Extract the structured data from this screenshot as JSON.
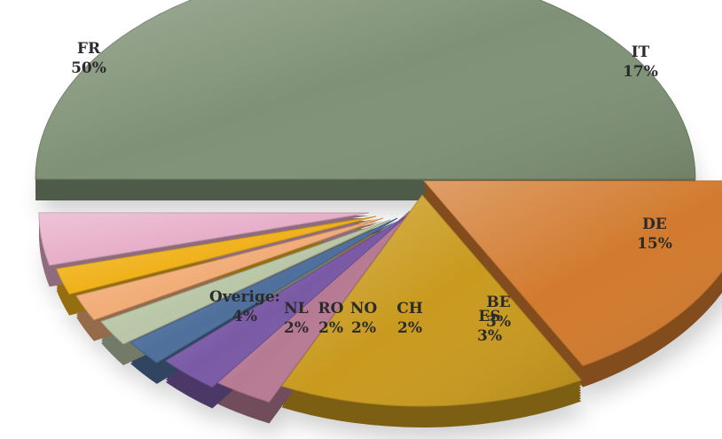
{
  "chart_data": {
    "type": "pie",
    "style": "3d-exploded",
    "slices": [
      {
        "label": "FR",
        "value_label": "50%",
        "value": 50,
        "color": "#7f9276"
      },
      {
        "label": "IT",
        "value_label": "17%",
        "value": 17,
        "color": "#d27a2e"
      },
      {
        "label": "DE",
        "value_label": "15%",
        "value": 15,
        "color": "#c99a1e"
      },
      {
        "label": "BE",
        "value_label": "3%",
        "value": 3,
        "color": "#b77a93"
      },
      {
        "label": "ES",
        "value_label": "3%",
        "value": 3,
        "color": "#7a5aa6"
      },
      {
        "label": "CH",
        "value_label": "2%",
        "value": 2,
        "color": "#4f709c"
      },
      {
        "label": "NO",
        "value_label": "2%",
        "value": 2,
        "color": "#b9c7a8"
      },
      {
        "label": "RO",
        "value_label": "2%",
        "value": 2,
        "color": "#f1ad78"
      },
      {
        "label": "NL",
        "value_label": "2%",
        "value": 2,
        "color": "#f0b21b"
      },
      {
        "label": "Overige:",
        "value_label": "4%",
        "value": 4,
        "color": "#e7aec8"
      }
    ]
  }
}
